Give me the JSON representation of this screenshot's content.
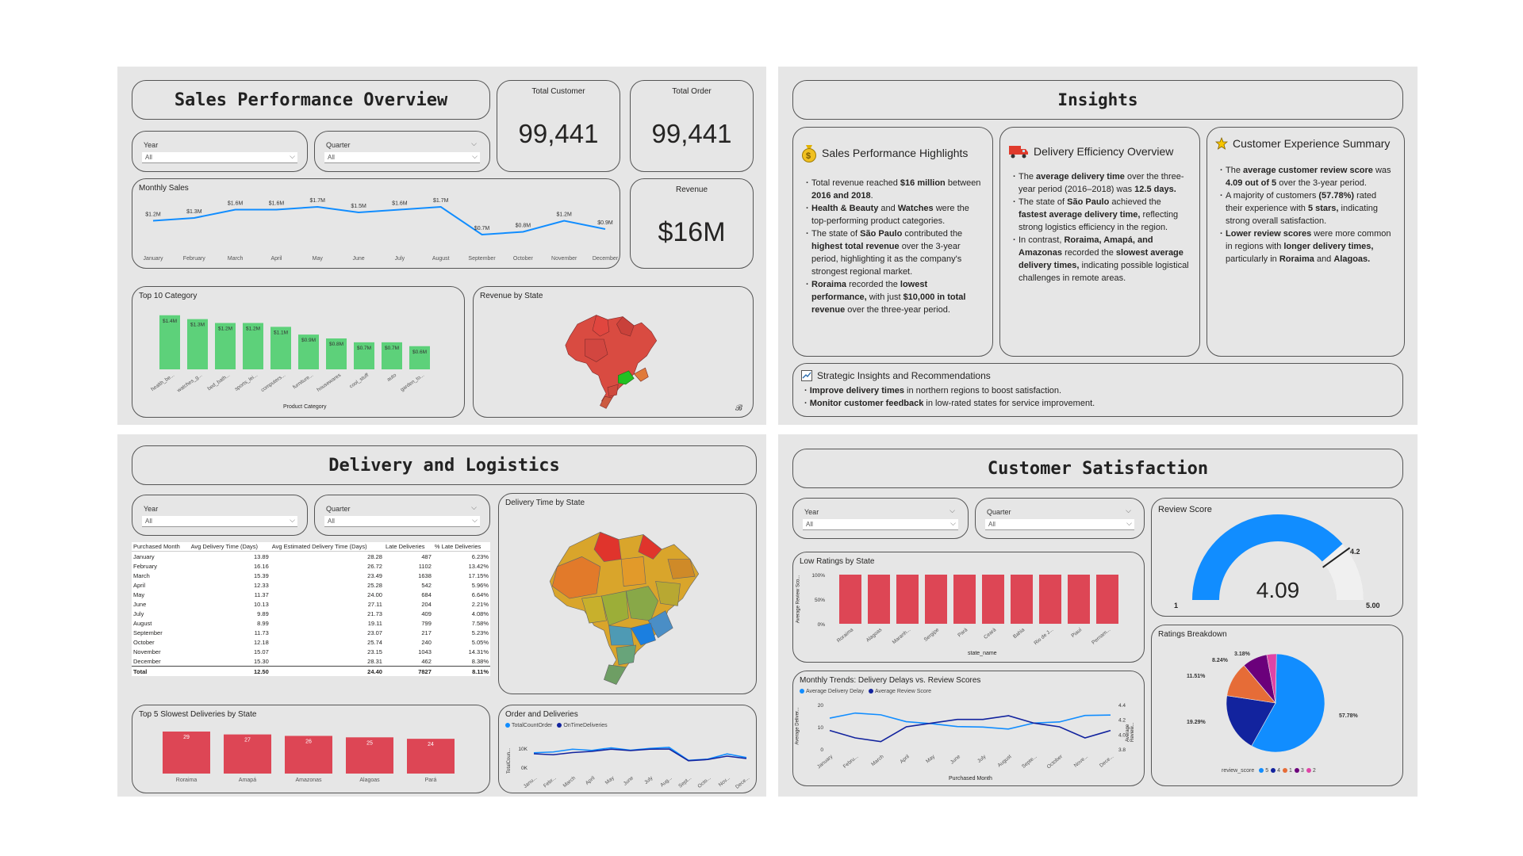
{
  "sales": {
    "title": "Sales Performance Overview",
    "slicers": [
      {
        "label": "Year",
        "value": "All"
      },
      {
        "label": "Quarter",
        "value": "All"
      }
    ],
    "kpis": {
      "total_customer": {
        "label": "Total Customer",
        "value": "99,441"
      },
      "total_order": {
        "label": "Total Order",
        "value": "99,441"
      },
      "revenue": {
        "label": "Revenue",
        "value": "$16M"
      }
    },
    "monthly_sales_title": "Monthly Sales",
    "top10_title": "Top 10 Category",
    "top10_xlabel": "Product Category",
    "revenue_by_state_title": "Revenue by State"
  },
  "insights": {
    "title": "Insights",
    "sales_head": "Sales Performance Highlights",
    "delivery_head": "Delivery Efficiency Overview",
    "customer_head": "Customer Experience Summary",
    "strategic_head": "Strategic Insights and Recommendations",
    "sales_points": [
      {
        "t1": "Total revenue reached ",
        "b1": "$16 million",
        "t2": " between ",
        "b2": "2016 and 2018",
        "t3": "."
      },
      {
        "t1": "",
        "b1": "Health & Beauty",
        "t2": " and ",
        "b2": "Watches",
        "t3": " were the top-performing product categories."
      },
      {
        "t1": "The state of ",
        "b1": "São Paulo",
        "t2": " contributed the ",
        "b2": "highest total revenue",
        "t3": " over the 3-year period, highlighting it as the company's strongest regional market."
      },
      {
        "t1": "",
        "b1": "Roraima",
        "t2": " recorded the ",
        "b2": "lowest performance,",
        "t3": " with just ",
        "b3": "$10,000 in total revenue",
        "t4": " over the three-year period."
      }
    ],
    "delivery_points": [
      {
        "t1": "The ",
        "b1": "average delivery time",
        "t2": " over the three-year period (2016–2018) was ",
        "b2": "12.5 days.",
        "t3": ""
      },
      {
        "t1": "The state of ",
        "b1": "São Paulo",
        "t2": " achieved the ",
        "b2": "fastest average delivery time,",
        "t3": " reflecting strong logistics efficiency in the region."
      },
      {
        "t1": "In contrast, ",
        "b1": "Roraima, Amapá, and Amazonas",
        "t2": " recorded the ",
        "b2": "slowest average delivery times,",
        "t3": " indicating possible logistical challenges in remote areas."
      }
    ],
    "customer_points": [
      {
        "t1": "The ",
        "b1": "average customer review score",
        "t2": " was ",
        "b2": "4.09 out of 5",
        "t3": " over the 3-year period."
      },
      {
        "t1": "A majority of customers ",
        "b1": "(57.78%)",
        "t2": " rated their experience with ",
        "b2": "5 stars,",
        "t3": " indicating strong overall satisfaction."
      },
      {
        "t1": "",
        "b1": "Lower review scores",
        "t2": " were more common in regions with ",
        "b2": "longer delivery times,",
        "t3": " particularly in ",
        "b3": "Roraima",
        "t4": " and ",
        "b4": "Alagoas."
      }
    ],
    "strategic_points": [
      {
        "b1": "Improve delivery times",
        "t1": " in northern regions to boost satisfaction."
      },
      {
        "b1": "Monitor customer feedback",
        "t1": " in low-rated states for service improvement."
      }
    ]
  },
  "delivery": {
    "title": "Delivery and Logistics",
    "slicers": [
      {
        "label": "Year",
        "value": "All"
      },
      {
        "label": "Quarter",
        "value": "All"
      }
    ],
    "map_title": "Delivery Time by State",
    "table": {
      "headers": [
        "Purchased Month",
        "Avg Delivery Time (Days)",
        "Avg Estimated Delivery Time (Days)",
        "Late Deliveries",
        "% Late Deliveries"
      ],
      "rows": [
        [
          "January",
          "13.89",
          "28.28",
          "487",
          "6.23%"
        ],
        [
          "February",
          "16.16",
          "26.72",
          "1102",
          "13.42%"
        ],
        [
          "March",
          "15.39",
          "23.49",
          "1638",
          "17.15%"
        ],
        [
          "April",
          "12.33",
          "25.28",
          "542",
          "5.96%"
        ],
        [
          "May",
          "11.37",
          "24.00",
          "684",
          "6.64%"
        ],
        [
          "June",
          "10.13",
          "27.11",
          "204",
          "2.21%"
        ],
        [
          "July",
          "9.89",
          "21.73",
          "409",
          "4.08%"
        ],
        [
          "August",
          "8.99",
          "19.11",
          "799",
          "7.58%"
        ],
        [
          "September",
          "11.73",
          "23.07",
          "217",
          "5.23%"
        ],
        [
          "October",
          "12.18",
          "25.74",
          "240",
          "5.05%"
        ],
        [
          "November",
          "15.07",
          "23.15",
          "1043",
          "14.31%"
        ],
        [
          "December",
          "15.30",
          "28.31",
          "462",
          "8.38%"
        ]
      ],
      "total": [
        "Total",
        "12.50",
        "24.40",
        "7827",
        "8.11%"
      ]
    },
    "slowest_title": "Top 5 Slowest Deliveries by State",
    "orders_title": "Order and Deliveries",
    "orders_legend": [
      "TotalCountOrder",
      "OnTimeDeliveries"
    ],
    "orders_ylabel": "TotalCoun...",
    "orders_ticks": [
      "10K",
      "0K"
    ]
  },
  "customer": {
    "title": "Customer Satisfaction",
    "slicers": [
      {
        "label": "Year",
        "value": "All"
      },
      {
        "label": "Quarter",
        "value": "All"
      }
    ],
    "review_title": "Review Score",
    "review_value": "4.09",
    "review_min": "1",
    "review_max": "5.00",
    "review_target": "4.2",
    "low_ratings_title": "Low Ratings by State",
    "low_ratings_ylabel": "Average Review Sco...",
    "low_ratings_xlabel": "state_name",
    "trends_title": "Monthly Trends: Delivery Delays vs. Review Scores",
    "trends_legend": [
      "Average Delivery Delay",
      "Average Review Score"
    ],
    "trends_ylabel_left": "Average Deliver...",
    "trends_ylabel_right": "Average Review...",
    "trends_xlabel": "Purchased Month",
    "breakdown_title": "Ratings Breakdown",
    "breakdown_legend_title": "review_score"
  },
  "colors": {
    "green": "#5dd17a",
    "red": "#dd4655",
    "blue": "#118dff",
    "navy": "#12239e",
    "orange": "#e66c37",
    "purple": "#6b007b",
    "pink": "#e044a7"
  },
  "chart_data": [
    {
      "type": "line",
      "title": "Monthly Sales",
      "categories": [
        "January",
        "February",
        "March",
        "April",
        "May",
        "June",
        "July",
        "August",
        "September",
        "October",
        "November",
        "December"
      ],
      "values": [
        1.2,
        1.3,
        1.6,
        1.6,
        1.7,
        1.5,
        1.6,
        1.7,
        0.7,
        0.8,
        1.2,
        0.9
      ],
      "labels": [
        "$1.2M",
        "$1.3M",
        "$1.6M",
        "$1.6M",
        "$1.7M",
        "$1.5M",
        "$1.6M",
        "$1.7M",
        "$0.7M",
        "$0.8M",
        "$1.2M",
        "$0.9M"
      ],
      "ylim": [
        0.3,
        1.9
      ]
    },
    {
      "type": "bar",
      "title": "Top 10 Category",
      "xlabel": "Product Category",
      "categories": [
        "health_be...",
        "watches_g...",
        "bed_bath...",
        "sports_lei...",
        "computers...",
        "furniture...",
        "housewares",
        "cool_stuff",
        "auto",
        "garden_to..."
      ],
      "values": [
        1.4,
        1.3,
        1.2,
        1.2,
        1.1,
        0.9,
        0.8,
        0.7,
        0.7,
        0.6
      ],
      "labels": [
        "$1.4M",
        "$1.3M",
        "$1.2M",
        "$1.2M",
        "$1.1M",
        "$0.9M",
        "$0.8M",
        "$0.7M",
        "$0.7M",
        "$0.6M"
      ],
      "ylim": [
        0,
        1.6
      ]
    },
    {
      "type": "bar",
      "title": "Top 5 Slowest Deliveries by State",
      "categories": [
        "Roraima",
        "Amapá",
        "Amazonas",
        "Alagoas",
        "Pará"
      ],
      "values": [
        29,
        27,
        26,
        25,
        24
      ],
      "ylim": [
        0,
        35
      ]
    },
    {
      "type": "line",
      "title": "Order and Deliveries",
      "categories": [
        "Janu...",
        "Febr...",
        "March",
        "April",
        "May",
        "June",
        "July",
        "Aug...",
        "Sept...",
        "Octo...",
        "Nov...",
        "Dece..."
      ],
      "series": [
        {
          "name": "TotalCountOrder",
          "values": [
            8.1,
            8.5,
            9.9,
            9.3,
            10.6,
            9.4,
            10.3,
            10.8,
            4.3,
            4.9,
            7.5,
            5.7
          ]
        },
        {
          "name": "OnTimeDeliveries",
          "values": [
            7.6,
            7.1,
            8.2,
            8.8,
            9.9,
            9.2,
            9.9,
            10.0,
            4.1,
            4.7,
            6.4,
            5.2
          ]
        }
      ],
      "ylim": [
        0,
        16
      ]
    },
    {
      "type": "bar",
      "title": "Low Ratings by State",
      "xlabel": "state_name",
      "categories": [
        "Roraima",
        "Alagoas",
        "Maranh...",
        "Sergipe",
        "Pará",
        "Ceará",
        "Bahia",
        "Rio de J...",
        "Piauí",
        "Pernam..."
      ],
      "values": [
        100,
        100,
        100,
        100,
        100,
        100,
        100,
        100,
        100,
        100
      ],
      "yticks": [
        "100%",
        "50%",
        "0%"
      ],
      "ylim": [
        0,
        100
      ]
    },
    {
      "type": "line",
      "title": "Monthly Trends: Delivery Delays vs. Review Scores",
      "xlabel": "Purchased Month",
      "categories": [
        "January",
        "Febru...",
        "March",
        "April",
        "May",
        "June",
        "July",
        "August",
        "Septe...",
        "October",
        "Nove...",
        "Dece..."
      ],
      "series": [
        {
          "name": "Average Delivery Delay",
          "values": [
            13.9,
            16.2,
            15.4,
            12.3,
            11.4,
            10.1,
            9.9,
            9.0,
            11.7,
            12.2,
            15.1,
            15.3
          ]
        },
        {
          "name": "Average Review Score",
          "values": [
            4.05,
            3.95,
            3.9,
            4.1,
            4.15,
            4.2,
            4.2,
            4.25,
            4.15,
            4.1,
            3.95,
            4.05
          ]
        }
      ],
      "ylim_left": [
        0,
        20
      ],
      "ylim_right": [
        3.8,
        4.4
      ],
      "yticks_left": [
        "20",
        "10",
        "0"
      ],
      "yticks_right": [
        "4.4",
        "4.2",
        "4.0",
        "3.8"
      ]
    },
    {
      "type": "pie",
      "title": "Ratings Breakdown",
      "legend_title": "review_score",
      "slices": [
        {
          "label": "5",
          "value": 57.78,
          "text": "57.78%"
        },
        {
          "label": "4",
          "value": 19.29,
          "text": "19.29%"
        },
        {
          "label": "1",
          "value": 11.51,
          "text": "11.51%"
        },
        {
          "label": "3",
          "value": 8.24,
          "text": "8.24%"
        },
        {
          "label": "2",
          "value": 3.18,
          "text": "3.18%"
        }
      ]
    }
  ]
}
